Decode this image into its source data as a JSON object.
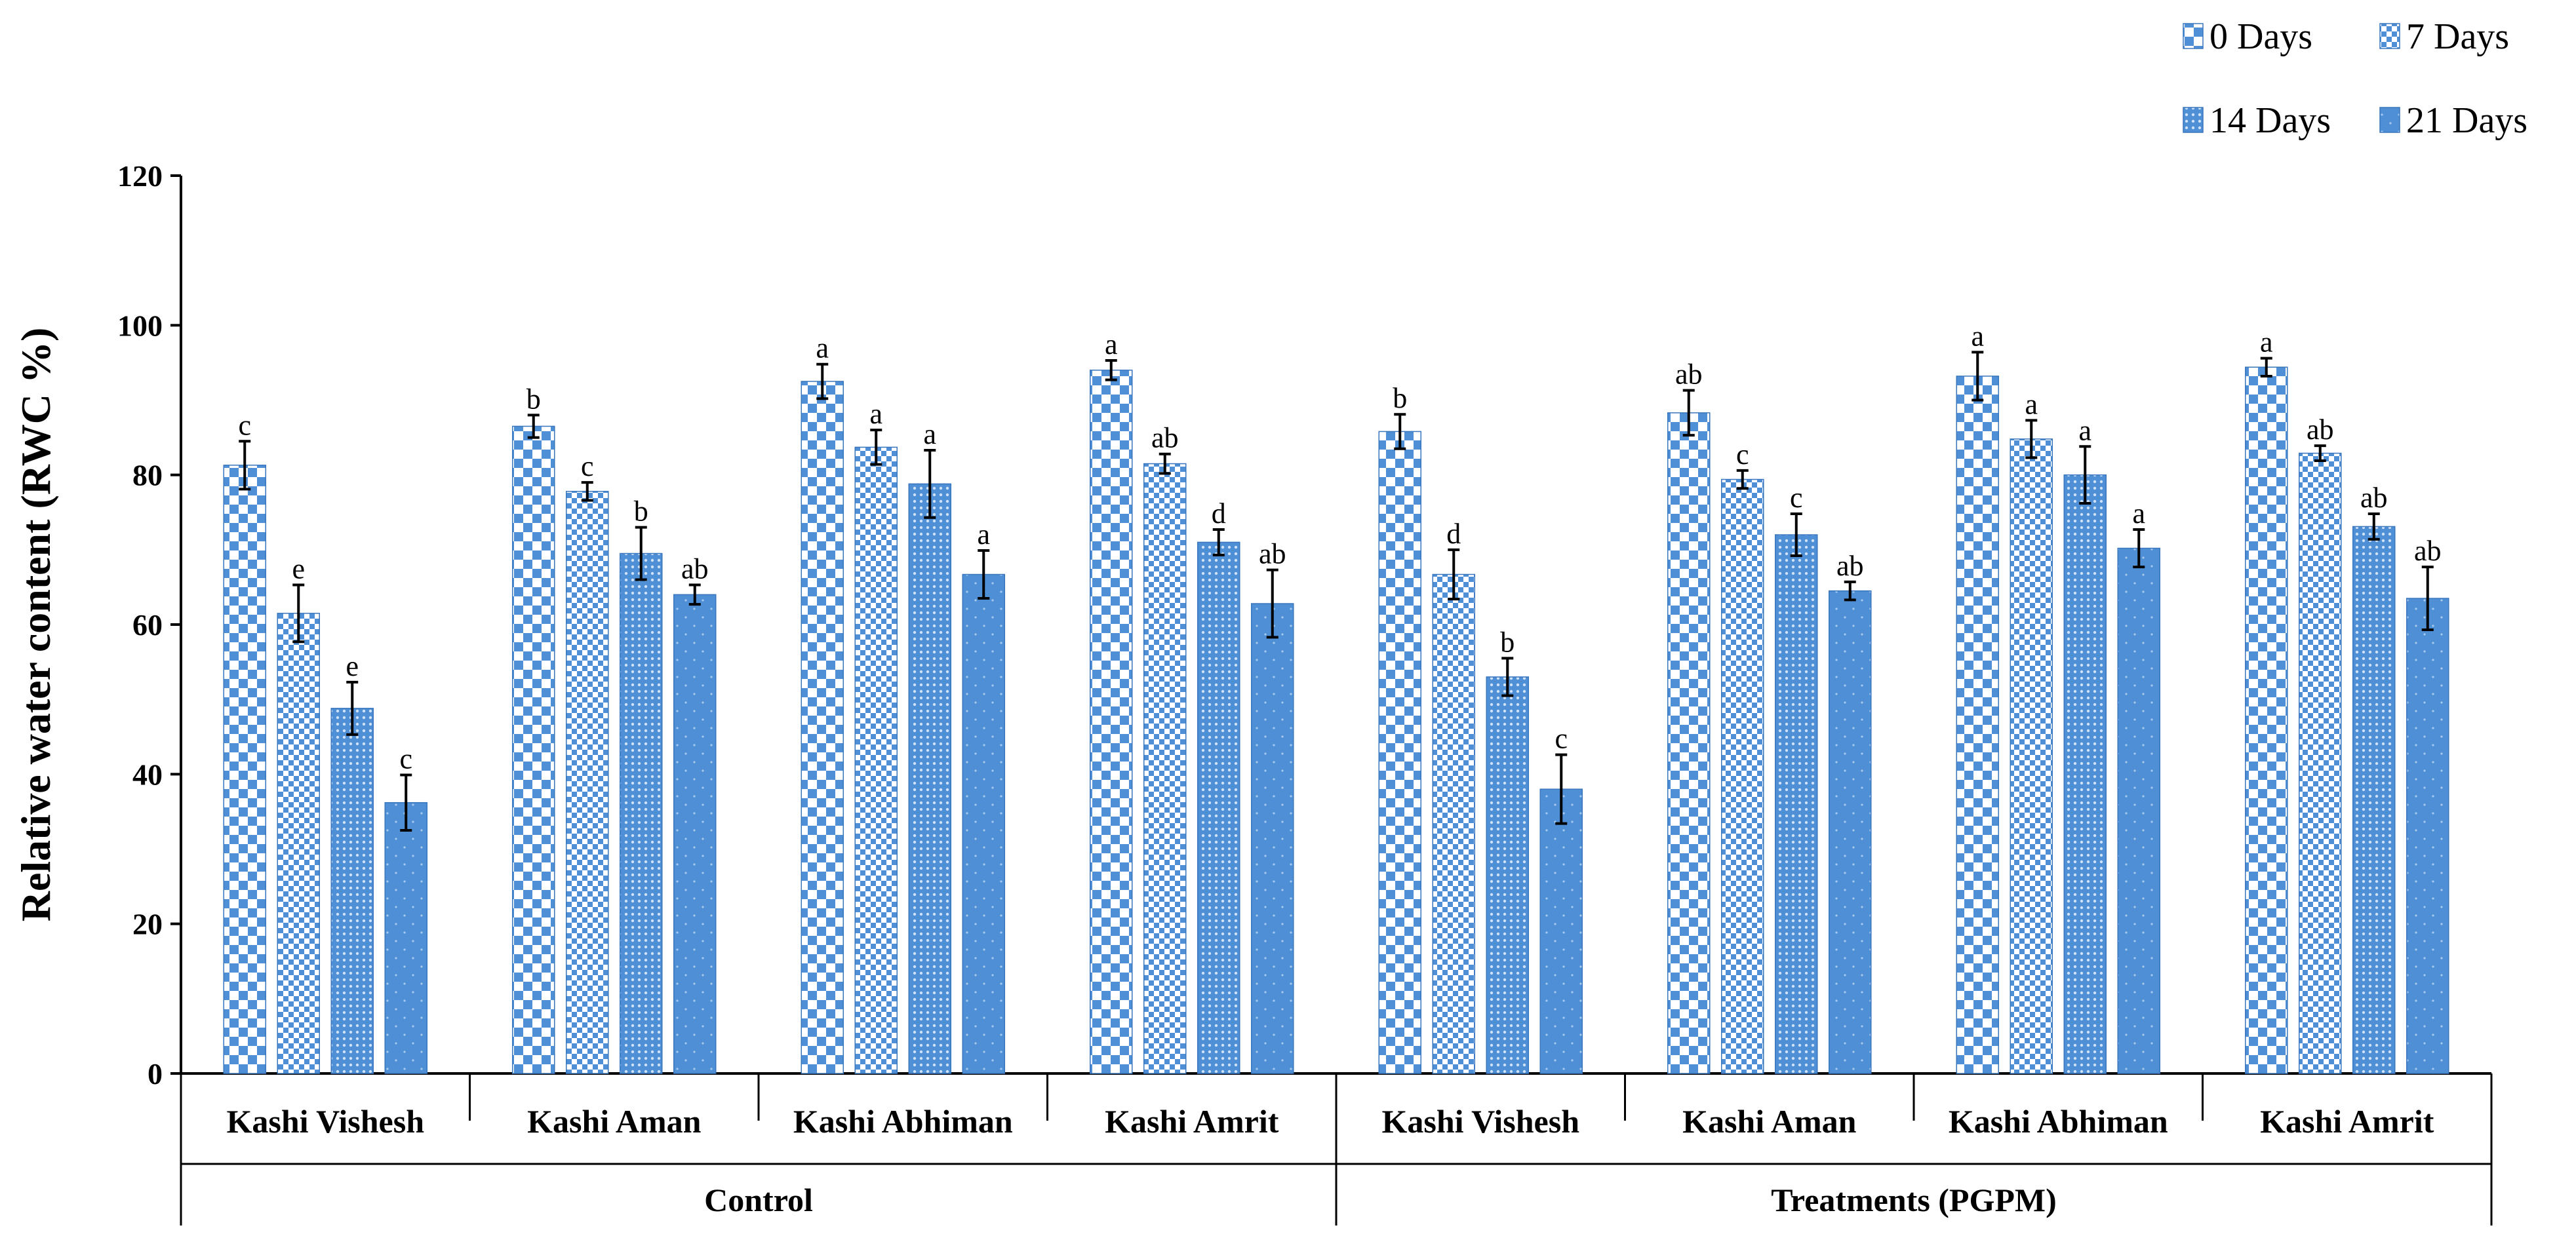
{
  "chart_data": {
    "type": "bar",
    "title": "",
    "xlabel": "",
    "ylabel": "Relative water content (RWC %)",
    "ylim": [
      0,
      120
    ],
    "yticks": [
      0,
      20,
      40,
      60,
      80,
      100,
      120
    ],
    "groups": [
      {
        "label": "Control",
        "categories": [
          "Kashi Vishesh",
          "Kashi Aman",
          "Kashi Abhiman",
          "Kashi Amrit"
        ]
      },
      {
        "label": "Treatments   (PGPM)",
        "categories": [
          "Kashi Vishesh",
          "Kashi Aman",
          "Kashi Abhiman",
          "Kashi Amrit"
        ]
      }
    ],
    "categories": [
      "Kashi Vishesh",
      "Kashi Aman",
      "Kashi Abhiman",
      "Kashi Amrit",
      "Kashi Vishesh",
      "Kashi Aman",
      "Kashi Abhiman",
      "Kashi Amrit"
    ],
    "legend_position": "top-right",
    "series": [
      {
        "name": "0 Days",
        "pattern": "checker-large",
        "values": [
          81.3,
          86.5,
          92.5,
          94.0,
          85.8,
          88.3,
          93.2,
          94.4
        ],
        "errors": [
          3.2,
          1.5,
          2.3,
          1.3,
          2.3,
          3.0,
          3.2,
          1.2
        ],
        "labels": [
          "c",
          "b",
          "a",
          "a",
          "b",
          "ab",
          "a",
          "a"
        ]
      },
      {
        "name": "7 Days",
        "pattern": "checker-small",
        "values": [
          61.5,
          77.8,
          83.7,
          81.5,
          66.7,
          79.4,
          84.8,
          82.9
        ],
        "errors": [
          3.8,
          1.2,
          2.3,
          1.3,
          3.3,
          1.2,
          2.5,
          1.0
        ],
        "labels": [
          "e",
          "c",
          "a",
          "ab",
          "d",
          "c",
          "a",
          "ab"
        ]
      },
      {
        "name": "14 Days",
        "pattern": "dots",
        "values": [
          48.8,
          69.5,
          78.8,
          71.0,
          53.0,
          72.0,
          80.0,
          73.1
        ],
        "errors": [
          3.5,
          3.5,
          4.5,
          1.7,
          2.5,
          2.8,
          3.8,
          1.7
        ],
        "labels": [
          "e",
          "b",
          "a",
          "d",
          "b",
          "c",
          "a",
          "ab"
        ]
      },
      {
        "name": "21 Days",
        "pattern": "solid-dotted",
        "values": [
          36.2,
          64.0,
          66.7,
          62.8,
          38.0,
          64.5,
          70.2,
          63.5
        ],
        "errors": [
          3.7,
          1.3,
          3.2,
          4.5,
          4.6,
          1.2,
          2.5,
          4.2
        ],
        "labels": [
          "c",
          "ab",
          "a",
          "ab",
          "c",
          "ab",
          "a",
          "ab"
        ]
      }
    ]
  },
  "colors": {
    "bar_blue": "#4f8fd6",
    "bar_blue_light": "#7fb0e6",
    "axis": "#000000",
    "background": "#ffffff"
  }
}
